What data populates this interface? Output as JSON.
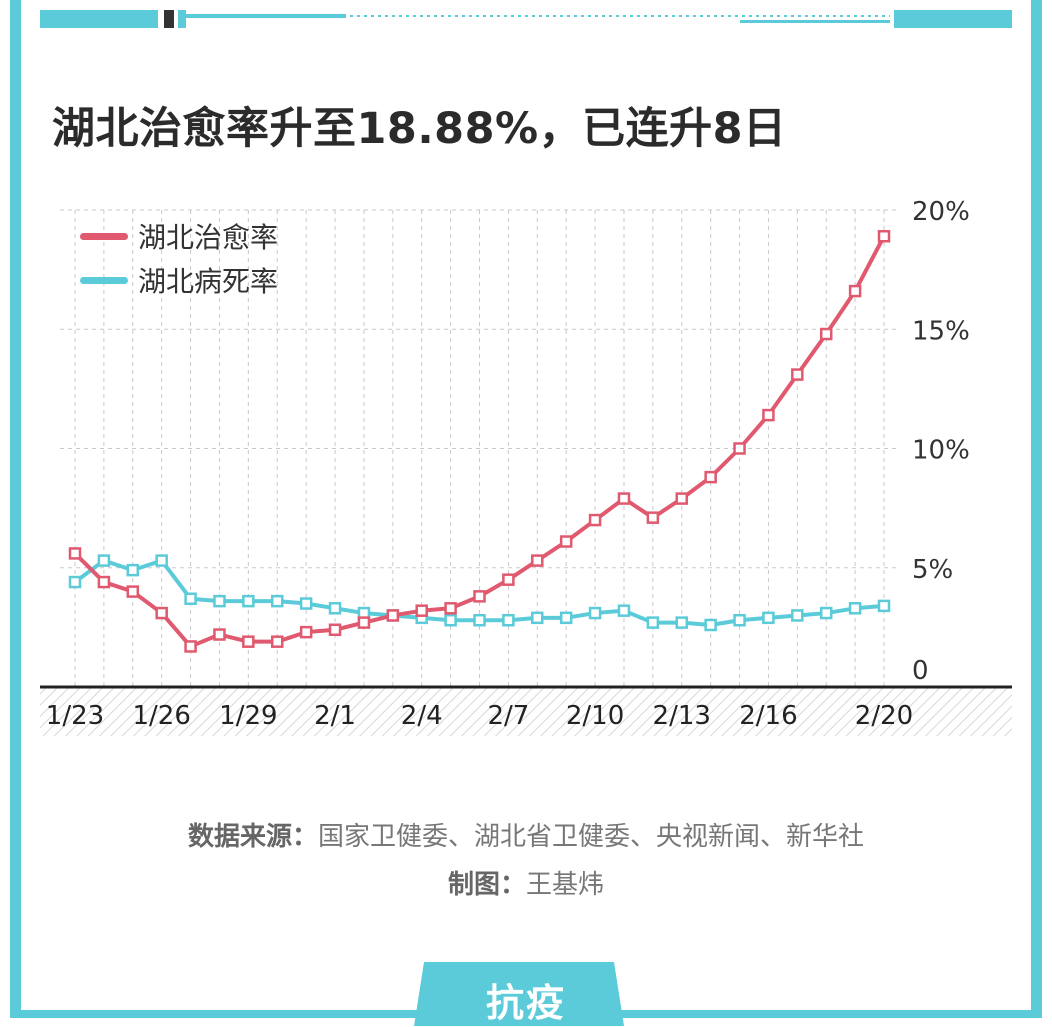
{
  "title": "湖北治愈率升至18.88%，已连升8日",
  "colors": {
    "accent": "#5bcbd9",
    "recovery": "#e0596e",
    "death": "#5bcbd9",
    "axis": "#222222",
    "grid": "#c8c8c8"
  },
  "chart_data": {
    "type": "line",
    "title": "",
    "xlabel": "",
    "ylabel": "",
    "ylim": [
      0,
      20
    ],
    "yticks": [
      "0",
      "5%",
      "10%",
      "15%",
      "20%"
    ],
    "ytick_values": [
      0,
      5,
      10,
      15,
      20
    ],
    "grid": true,
    "legend": "top-left",
    "x": [
      "1/23",
      "1/24",
      "1/25",
      "1/26",
      "1/27",
      "1/28",
      "1/29",
      "1/30",
      "1/31",
      "2/1",
      "2/2",
      "2/3",
      "2/4",
      "2/5",
      "2/6",
      "2/7",
      "2/8",
      "2/9",
      "2/10",
      "2/11",
      "2/12",
      "2/13",
      "2/14",
      "2/15",
      "2/16",
      "2/17",
      "2/18",
      "2/19",
      "2/20"
    ],
    "xtick_labels": [
      {
        "index": 0,
        "label": "1/23"
      },
      {
        "index": 3,
        "label": "1/26"
      },
      {
        "index": 6,
        "label": "1/29"
      },
      {
        "index": 9,
        "label": "2/1"
      },
      {
        "index": 12,
        "label": "2/4"
      },
      {
        "index": 15,
        "label": "2/7"
      },
      {
        "index": 18,
        "label": "2/10"
      },
      {
        "index": 21,
        "label": "2/13"
      },
      {
        "index": 24,
        "label": "2/16"
      },
      {
        "index": 28,
        "label": "2/20"
      }
    ],
    "series": [
      {
        "name": "湖北治愈率",
        "color": "#e0596e",
        "values": [
          5.6,
          4.4,
          4.0,
          3.1,
          1.7,
          2.2,
          1.9,
          1.9,
          2.3,
          2.4,
          2.7,
          3.0,
          3.2,
          3.3,
          3.8,
          4.5,
          5.3,
          6.1,
          7.0,
          7.9,
          7.1,
          7.9,
          8.8,
          10.0,
          11.4,
          13.1,
          14.8,
          16.6,
          18.9
        ]
      },
      {
        "name": "湖北病死率",
        "color": "#5bcbd9",
        "values": [
          4.4,
          5.3,
          4.9,
          5.3,
          3.7,
          3.6,
          3.6,
          3.6,
          3.5,
          3.3,
          3.1,
          3.0,
          2.9,
          2.8,
          2.8,
          2.8,
          2.9,
          2.9,
          3.1,
          3.2,
          2.7,
          2.7,
          2.6,
          2.8,
          2.9,
          3.0,
          3.1,
          3.3,
          3.4
        ]
      }
    ]
  },
  "source": {
    "label": "数据来源：",
    "text": "国家卫健委、湖北省卫健委、央视新闻、新华社"
  },
  "credit": {
    "label": "制图：",
    "text": "王基炜"
  },
  "tab_label": "抗疫"
}
